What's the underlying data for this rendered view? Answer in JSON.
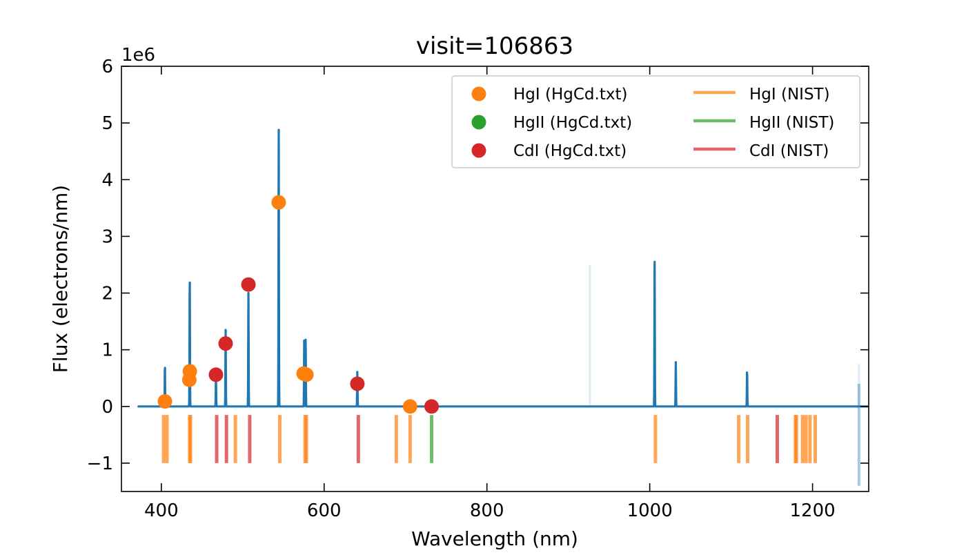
{
  "chart_data": {
    "type": "line",
    "title": "visit=106863",
    "xlabel": "Wavelength (nm)",
    "ylabel": "Flux (electrons/nm)",
    "y_offset_label": "1e6",
    "xlim": [
      351,
      1269
    ],
    "ylim": [
      -1.5,
      6
    ],
    "xticks": [
      400,
      600,
      800,
      1000,
      1200
    ],
    "yticks": [
      -1,
      0,
      1,
      2,
      3,
      4,
      5,
      6
    ],
    "ytick_labels": [
      "−1",
      "0",
      "1",
      "2",
      "3",
      "4",
      "5",
      "6"
    ],
    "y_units_scale": 1000000,
    "grid": false,
    "legend_position": "top-right",
    "spectrum": {
      "color": "#1f77b4",
      "range": [
        372,
        1268
      ],
      "peaks": [
        {
          "x": 404.4,
          "y": 0.74
        },
        {
          "x": 434.9,
          "y": 2.37
        },
        {
          "x": 467.1,
          "y": 0.51
        },
        {
          "x": 479.0,
          "y": 1.35
        },
        {
          "x": 507.0,
          "y": 2.0
        },
        {
          "x": 544.2,
          "y": 4.98
        },
        {
          "x": 575.6,
          "y": 1.26
        },
        {
          "x": 577.3,
          "y": 1.2
        },
        {
          "x": 640.8,
          "y": 0.62
        },
        {
          "x": 1006.0,
          "y": 2.55
        },
        {
          "x": 1032.0,
          "y": 0.78
        },
        {
          "x": 1119.6,
          "y": 0.65
        }
      ],
      "faint_peaks": [
        {
          "x": 926.4,
          "y": 2.5
        },
        {
          "x": 1257.0,
          "y": 0.75
        }
      ],
      "end_dip": {
        "x": 1257.0,
        "y": -1.4
      }
    },
    "scatter": [
      {
        "name": "HgI (HgCd.txt)",
        "color": "#ff7f0e",
        "points": [
          {
            "x": 404.4,
            "y": 0.09
          },
          {
            "x": 435.0,
            "y": 0.62
          },
          {
            "x": 434.4,
            "y": 0.47
          },
          {
            "x": 544.2,
            "y": 3.6
          },
          {
            "x": 574.8,
            "y": 0.58
          },
          {
            "x": 578.2,
            "y": 0.56
          },
          {
            "x": 705.6,
            "y": 0.0
          }
        ]
      },
      {
        "name": "HgII (HgCd.txt)",
        "color": "#2ca02c",
        "points": []
      },
      {
        "name": "CdI (HgCd.txt)",
        "color": "#d62728",
        "points": [
          {
            "x": 467.1,
            "y": 0.56
          },
          {
            "x": 479.0,
            "y": 1.11
          },
          {
            "x": 507.0,
            "y": 2.15
          },
          {
            "x": 640.8,
            "y": 0.4
          },
          {
            "x": 732.0,
            "y": 0.0
          }
        ]
      }
    ],
    "nist_lines": [
      {
        "name": "HgI (NIST)",
        "color": "#ff7f0e",
        "x": [
          402.8,
          407.0,
          434.8,
          435.8,
          491.0,
          545.5,
          576.6,
          578.2,
          688.7,
          705.6,
          1007.0,
          1109.3,
          1120.3,
          1179.0,
          1180.2,
          1187.8,
          1192.0,
          1196.8,
          1203.3
        ]
      },
      {
        "name": "HgII (NIST)",
        "color": "#2ca02c",
        "x": [
          732.0
        ]
      },
      {
        "name": "CdI (NIST)",
        "color": "#d62728",
        "x": [
          468.0,
          480.0,
          508.6,
          642.0,
          1156.7
        ]
      }
    ],
    "nist_line_range": [
      -1.0,
      -0.15
    ]
  }
}
